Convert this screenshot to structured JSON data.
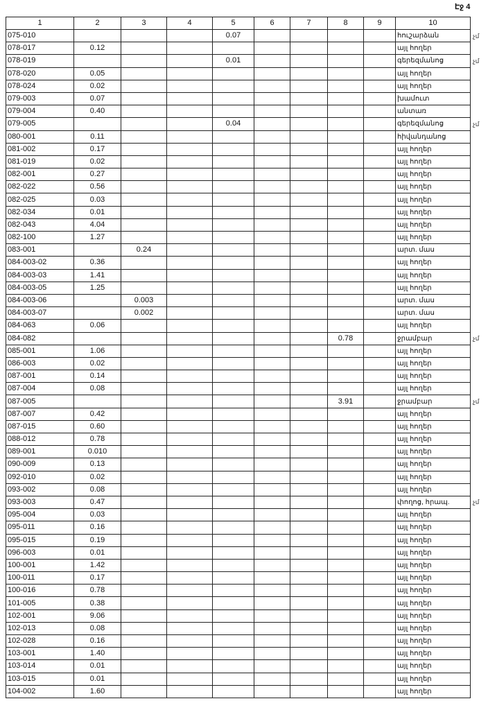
{
  "page_label": "Էջ 4",
  "headers": [
    "1",
    "2",
    "3",
    "4",
    "5",
    "6",
    "7",
    "8",
    "9",
    "10"
  ],
  "rows": [
    [
      "075-010",
      "",
      "",
      "",
      "0.07",
      "",
      "",
      "",
      "",
      "հուշարձան",
      "չմ"
    ],
    [
      "078-017",
      "0.12",
      "",
      "",
      "",
      "",
      "",
      "",
      "",
      "այլ հողեր",
      ""
    ],
    [
      "078-019",
      "",
      "",
      "",
      "0.01",
      "",
      "",
      "",
      "",
      "գերեզմանոց",
      "չմ"
    ],
    [
      "078-020",
      "0.05",
      "",
      "",
      "",
      "",
      "",
      "",
      "",
      "այլ հողեր",
      ""
    ],
    [
      "078-024",
      "0.02",
      "",
      "",
      "",
      "",
      "",
      "",
      "",
      "այլ հողեր",
      ""
    ],
    [
      "079-003",
      "0.07",
      "",
      "",
      "",
      "",
      "",
      "",
      "",
      "խամուտ",
      ""
    ],
    [
      "079-004",
      "0.40",
      "",
      "",
      "",
      "",
      "",
      "",
      "",
      "անտառ",
      ""
    ],
    [
      "079-005",
      "",
      "",
      "",
      "0.04",
      "",
      "",
      "",
      "",
      "գերեզմանոց",
      "չմ"
    ],
    [
      "080-001",
      "0.11",
      "",
      "",
      "",
      "",
      "",
      "",
      "",
      "հիվանդանոց",
      ""
    ],
    [
      "081-002",
      "0.17",
      "",
      "",
      "",
      "",
      "",
      "",
      "",
      "այլ հողեր",
      ""
    ],
    [
      "081-019",
      "0.02",
      "",
      "",
      "",
      "",
      "",
      "",
      "",
      "այլ հողեր",
      ""
    ],
    [
      "082-001",
      "0.27",
      "",
      "",
      "",
      "",
      "",
      "",
      "",
      "այլ հողեր",
      ""
    ],
    [
      "082-022",
      "0.56",
      "",
      "",
      "",
      "",
      "",
      "",
      "",
      "այլ հողեր",
      ""
    ],
    [
      "082-025",
      "0.03",
      "",
      "",
      "",
      "",
      "",
      "",
      "",
      "այլ հողեր",
      ""
    ],
    [
      "082-034",
      "0.01",
      "",
      "",
      "",
      "",
      "",
      "",
      "",
      "այլ հողեր",
      ""
    ],
    [
      "082-043",
      "4.04",
      "",
      "",
      "",
      "",
      "",
      "",
      "",
      "այլ հողեր",
      ""
    ],
    [
      "082-100",
      "1.27",
      "",
      "",
      "",
      "",
      "",
      "",
      "",
      "այլ հողեր",
      ""
    ],
    [
      "083-001",
      "",
      "0.24",
      "",
      "",
      "",
      "",
      "",
      "",
      "արտ. մաս",
      ""
    ],
    [
      "084-003-02",
      "0.36",
      "",
      "",
      "",
      "",
      "",
      "",
      "",
      "այլ հողեր",
      ""
    ],
    [
      "084-003-03",
      "1.41",
      "",
      "",
      "",
      "",
      "",
      "",
      "",
      "այլ հողեր",
      ""
    ],
    [
      "084-003-05",
      "1.25",
      "",
      "",
      "",
      "",
      "",
      "",
      "",
      "այլ հողեր",
      ""
    ],
    [
      "084-003-06",
      "",
      "0.003",
      "",
      "",
      "",
      "",
      "",
      "",
      "արտ. մաս",
      ""
    ],
    [
      "084-003-07",
      "",
      "0.002",
      "",
      "",
      "",
      "",
      "",
      "",
      "արտ. մաս",
      ""
    ],
    [
      "084-063",
      "0.06",
      "",
      "",
      "",
      "",
      "",
      "",
      "",
      "այլ հողեր",
      ""
    ],
    [
      "084-082",
      "",
      "",
      "",
      "",
      "",
      "",
      "0.78",
      "",
      "ջրամբար",
      "չմ"
    ],
    [
      "085-001",
      "1.06",
      "",
      "",
      "",
      "",
      "",
      "",
      "",
      "այլ հողեր",
      ""
    ],
    [
      "086-003",
      "0.02",
      "",
      "",
      "",
      "",
      "",
      "",
      "",
      "այլ հողեր",
      ""
    ],
    [
      "087-001",
      "0.14",
      "",
      "",
      "",
      "",
      "",
      "",
      "",
      "այլ հողեր",
      ""
    ],
    [
      "087-004",
      "0.08",
      "",
      "",
      "",
      "",
      "",
      "",
      "",
      "այլ հողեր",
      ""
    ],
    [
      "087-005",
      "",
      "",
      "",
      "",
      "",
      "",
      "3.91",
      "",
      "ջրամբար",
      "չմ"
    ],
    [
      "087-007",
      "0.42",
      "",
      "",
      "",
      "",
      "",
      "",
      "",
      "այլ հողեր",
      ""
    ],
    [
      "087-015",
      "0.60",
      "",
      "",
      "",
      "",
      "",
      "",
      "",
      "այլ հողեր",
      ""
    ],
    [
      "088-012",
      "0.78",
      "",
      "",
      "",
      "",
      "",
      "",
      "",
      "այլ հողեր",
      ""
    ],
    [
      "089-001",
      "0.010",
      "",
      "",
      "",
      "",
      "",
      "",
      "",
      "այլ հողեր",
      ""
    ],
    [
      "090-009",
      "0.13",
      "",
      "",
      "",
      "",
      "",
      "",
      "",
      "այլ հողեր",
      ""
    ],
    [
      "092-010",
      "0.02",
      "",
      "",
      "",
      "",
      "",
      "",
      "",
      "այլ հողեր",
      ""
    ],
    [
      "093-002",
      "0.08",
      "",
      "",
      "",
      "",
      "",
      "",
      "",
      "այլ հողեր",
      ""
    ],
    [
      "093-003",
      "0.47",
      "",
      "",
      "",
      "",
      "",
      "",
      "",
      "փողոց, հրապ.",
      "չմ"
    ],
    [
      "095-004",
      "0.03",
      "",
      "",
      "",
      "",
      "",
      "",
      "",
      "այլ հողեր",
      ""
    ],
    [
      "095-011",
      "0.16",
      "",
      "",
      "",
      "",
      "",
      "",
      "",
      "այլ հողեր",
      ""
    ],
    [
      "095-015",
      "0.19",
      "",
      "",
      "",
      "",
      "",
      "",
      "",
      "այլ հողեր",
      ""
    ],
    [
      "096-003",
      "0.01",
      "",
      "",
      "",
      "",
      "",
      "",
      "",
      "այլ հողեր",
      ""
    ],
    [
      "100-001",
      "1.42",
      "",
      "",
      "",
      "",
      "",
      "",
      "",
      "այլ հողեր",
      ""
    ],
    [
      "100-011",
      "0.17",
      "",
      "",
      "",
      "",
      "",
      "",
      "",
      "այլ հողեր",
      ""
    ],
    [
      "100-016",
      "0.78",
      "",
      "",
      "",
      "",
      "",
      "",
      "",
      "այլ հողեր",
      ""
    ],
    [
      "101-005",
      "0.38",
      "",
      "",
      "",
      "",
      "",
      "",
      "",
      "այլ հողեր",
      ""
    ],
    [
      "102-001",
      "9.06",
      "",
      "",
      "",
      "",
      "",
      "",
      "",
      "այլ հողեր",
      ""
    ],
    [
      "102-013",
      "0.08",
      "",
      "",
      "",
      "",
      "",
      "",
      "",
      "այլ հողեր",
      ""
    ],
    [
      "102-028",
      "0.16",
      "",
      "",
      "",
      "",
      "",
      "",
      "",
      "այլ հողեր",
      ""
    ],
    [
      "103-001",
      "1.40",
      "",
      "",
      "",
      "",
      "",
      "",
      "",
      "այլ հողեր",
      ""
    ],
    [
      "103-014",
      "0.01",
      "",
      "",
      "",
      "",
      "",
      "",
      "",
      "այլ հողեր",
      ""
    ],
    [
      "103-015",
      "0.01",
      "",
      "",
      "",
      "",
      "",
      "",
      "",
      "այլ հողեր",
      ""
    ],
    [
      "104-002",
      "1.60",
      "",
      "",
      "",
      "",
      "",
      "",
      "",
      "այլ հողեր",
      ""
    ]
  ]
}
